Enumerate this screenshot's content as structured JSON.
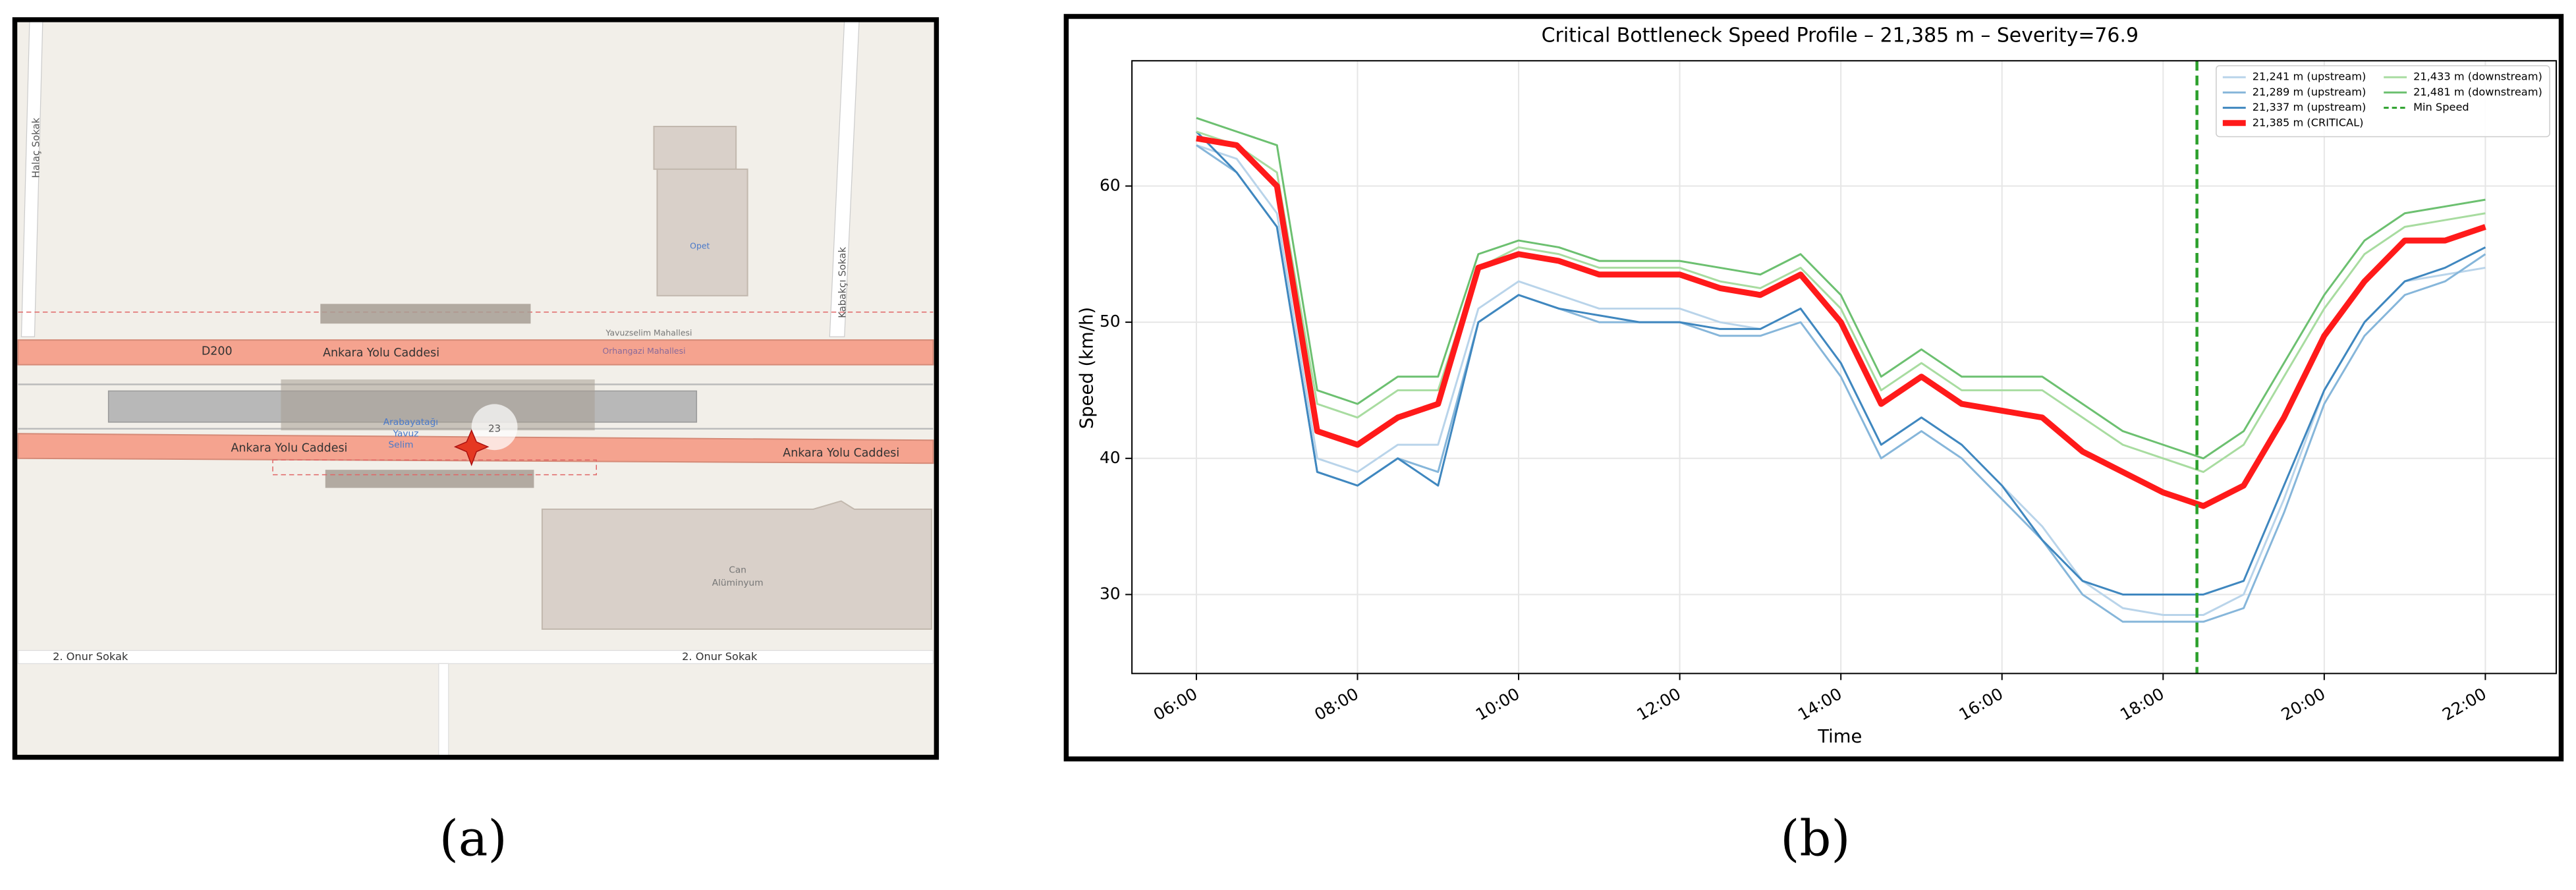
{
  "map": {
    "labels": {
      "street_west": "Halaç Sokak",
      "fuel": "Opet",
      "district_north": "Yavuzselim Mahallesi",
      "route": "D200",
      "road_north": "Ankara Yolu Caddesi",
      "district_south": "Orhangazi Mahallesi",
      "road_south_west": "Ankara Yolu Caddesi",
      "road_south_east": "Ankara Yolu Caddesi",
      "station": [
        "Arabayatağı",
        "Yavuz",
        "Selim"
      ],
      "marker": "23",
      "building": [
        "Can",
        "Alüminyum"
      ],
      "street_south_west": "2. Onur Sokak",
      "street_south_east": "2. Onur Sokak",
      "street_east": "Kabakçı Sokak"
    }
  },
  "panel_labels": [
    "(a)",
    "(b)"
  ],
  "chart_data": {
    "type": "line",
    "title": "Critical Bottleneck Speed Profile – 21,385 m – Severity=76.9",
    "x_label": "Time",
    "y_label": "Speed (km/h)",
    "x": [
      6,
      6.5,
      7,
      7.5,
      8,
      8.5,
      9,
      9.5,
      10,
      10.5,
      11,
      11.5,
      12,
      12.5,
      13,
      13.5,
      14,
      14.5,
      15,
      15.5,
      16,
      16.5,
      17,
      17.5,
      18,
      18.5,
      19,
      19.5,
      20,
      20.5,
      21,
      21.5,
      22
    ],
    "xlim": [
      5.2,
      22.88
    ],
    "xticks": [
      {
        "value": 6,
        "label": "06:00"
      },
      {
        "value": 8,
        "label": "08:00"
      },
      {
        "value": 10,
        "label": "10:00"
      },
      {
        "value": 12,
        "label": "12:00"
      },
      {
        "value": 14,
        "label": "14:00"
      },
      {
        "value": 16,
        "label": "16:00"
      },
      {
        "value": 18,
        "label": "18:00"
      },
      {
        "value": 20,
        "label": "20:00"
      },
      {
        "value": 22,
        "label": "22:00"
      }
    ],
    "ylim": [
      24.2,
      69.2
    ],
    "yticks": [
      30,
      40,
      50,
      60
    ],
    "grid": true,
    "legend": "upper right",
    "series": [
      {
        "name": "21,241 m (upstream)",
        "color": "#b9d4ea",
        "linewidth": 1,
        "values": [
          63,
          62,
          58,
          40,
          39,
          41,
          41,
          51,
          53,
          52,
          51,
          51,
          51,
          50,
          49.5,
          51,
          47,
          41,
          43,
          41,
          38,
          35,
          31,
          29,
          28.5,
          28.5,
          30,
          37,
          45,
          50,
          53,
          53.5,
          54
        ]
      },
      {
        "name": "21,289 m (upstream)",
        "color": "#86b6da",
        "linewidth": 1,
        "values": [
          63,
          61,
          57,
          39,
          38,
          40,
          39,
          50,
          52,
          51,
          50,
          50,
          50,
          49,
          49,
          50,
          46,
          40,
          42,
          40,
          37,
          34,
          30,
          28,
          28,
          28,
          29,
          36,
          44,
          49,
          52,
          53,
          55
        ]
      },
      {
        "name": "21,337 m (upstream)",
        "color": "#3f87bf",
        "linewidth": 1,
        "values": [
          64,
          61,
          57,
          39,
          38,
          40,
          38,
          50,
          52,
          51,
          50.5,
          50,
          50,
          49.5,
          49.5,
          51,
          47,
          41,
          43,
          41,
          38,
          34,
          31,
          30,
          30,
          30,
          31,
          38,
          45,
          50,
          53,
          54,
          55.5
        ]
      },
      {
        "name": "21,385 m (CRITICAL)",
        "color": "#ff1a1a",
        "linewidth": 3,
        "values": [
          63.5,
          63,
          60,
          42,
          41,
          43,
          44,
          54,
          55,
          54.5,
          53.5,
          53.5,
          53.5,
          52.5,
          52,
          53.5,
          50,
          44,
          46,
          44,
          43.5,
          43,
          40.5,
          39,
          37.5,
          36.5,
          38,
          43,
          49,
          53,
          56,
          56,
          57
        ]
      },
      {
        "name": "21,433 m (downstream)",
        "color": "#a8dca0",
        "linewidth": 1,
        "values": [
          64,
          63,
          61,
          44,
          43,
          45,
          45,
          54,
          55.5,
          55,
          54,
          54,
          54,
          53,
          52.5,
          54,
          51,
          45,
          47,
          45,
          45,
          45,
          43,
          41,
          40,
          39,
          41,
          46,
          51,
          55,
          57,
          57.5,
          58
        ]
      },
      {
        "name": "21,481 m (downstream)",
        "color": "#6cc070",
        "linewidth": 1,
        "values": [
          65,
          64,
          63,
          45,
          44,
          46,
          46,
          55,
          56,
          55.5,
          54.5,
          54.5,
          54.5,
          54,
          53.5,
          55,
          52,
          46,
          48,
          46,
          46,
          46,
          44,
          42,
          41,
          40,
          42,
          47,
          52,
          56,
          58,
          58.5,
          59
        ]
      }
    ],
    "reference_line": {
      "name": "Min Speed",
      "x": 18.42,
      "color": "#2ca02c"
    }
  }
}
